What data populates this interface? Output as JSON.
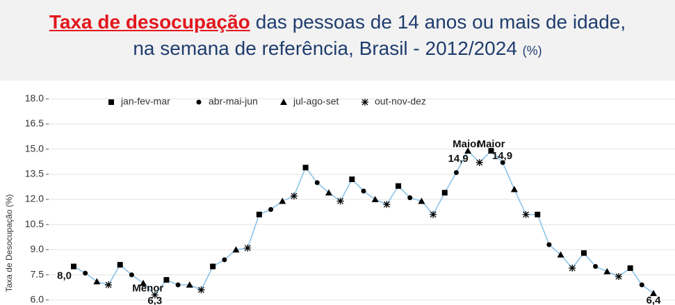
{
  "chart_data": {
    "type": "line",
    "title_highlight": "Taxa de desocupação",
    "title": "das pessoas de 14 anos ou mais de idade,",
    "title_line2": "na semana de referência, Brasil - 2012/2024",
    "title_unit": "(%)",
    "ylabel": "Taxa de Desocupação (%)",
    "legend": [
      {
        "name": "jan-fev-mar",
        "symbol": "square"
      },
      {
        "name": "abr-mai-jun",
        "symbol": "circle"
      },
      {
        "name": "jul-ago-set",
        "symbol": "triangle"
      },
      {
        "name": "out-nov-dez",
        "symbol": "asterisk"
      }
    ],
    "line_color": "#8cc3e8",
    "marker_color": "#000000",
    "values": [
      8.0,
      7.6,
      7.1,
      6.9,
      8.1,
      7.5,
      7.0,
      6.3,
      7.2,
      6.9,
      6.9,
      6.6,
      8.0,
      8.4,
      9.0,
      9.1,
      11.1,
      11.4,
      11.9,
      12.2,
      13.9,
      13.0,
      12.4,
      11.9,
      13.2,
      12.5,
      12.0,
      11.7,
      12.8,
      12.1,
      11.9,
      11.1,
      12.4,
      13.6,
      14.9,
      14.2,
      14.9,
      14.2,
      12.6,
      11.1,
      11.1,
      9.3,
      8.7,
      7.9,
      8.8,
      8.0,
      7.7,
      7.4,
      7.9,
      6.9,
      6.4
    ],
    "value_labels": [
      "8,0",
      null,
      null,
      null,
      null,
      null,
      null,
      "6,3",
      null,
      null,
      null,
      null,
      null,
      null,
      null,
      null,
      null,
      null,
      null,
      null,
      null,
      null,
      null,
      null,
      null,
      null,
      null,
      null,
      null,
      null,
      null,
      null,
      null,
      null,
      "14,9",
      null,
      "14,9",
      null,
      null,
      null,
      null,
      null,
      null,
      null,
      null,
      null,
      null,
      null,
      null,
      null,
      "6,4"
    ],
    "notes": [
      null,
      null,
      null,
      null,
      null,
      null,
      null,
      "Menor",
      null,
      null,
      null,
      null,
      null,
      null,
      null,
      null,
      null,
      null,
      null,
      null,
      null,
      null,
      null,
      null,
      null,
      null,
      null,
      null,
      null,
      null,
      null,
      null,
      null,
      null,
      "Maior",
      null,
      "Maior",
      null,
      null,
      null,
      null,
      null,
      null,
      null,
      null,
      null,
      null,
      null,
      null,
      null,
      null
    ],
    "ylim": [
      5.7,
      18.8
    ],
    "yticks": [
      {
        "value": 6,
        "label": "6.0"
      },
      {
        "value": 7.5,
        "label": "7.5"
      },
      {
        "value": 9,
        "label": "9.0"
      },
      {
        "value": 10.5,
        "label": "10.5"
      },
      {
        "value": 12,
        "label": "12.0"
      },
      {
        "value": 13.5,
        "label": "13.5"
      },
      {
        "value": 15,
        "label": "15.0"
      },
      {
        "value": 16.5,
        "label": "16.5"
      },
      {
        "value": 18,
        "label": "18.0"
      }
    ],
    "grid": true
  }
}
